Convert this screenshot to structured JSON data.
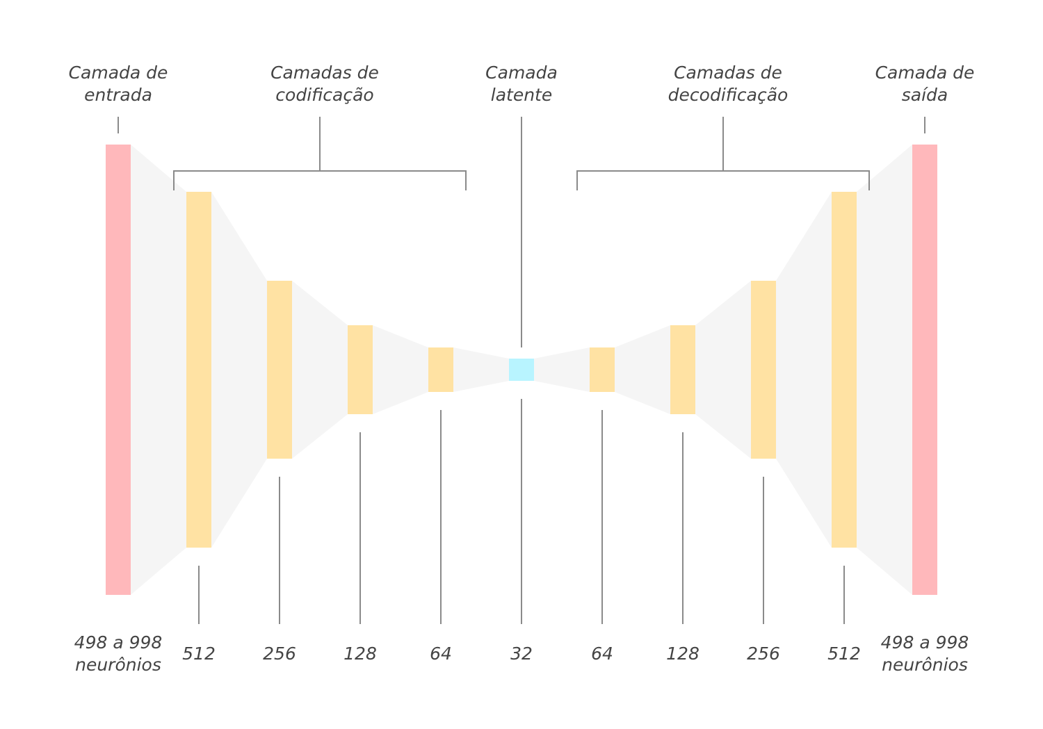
{
  "colors": {
    "io_layer": "#ffb8bb",
    "hidden_layer": "#ffe2a3",
    "latent_layer": "#b8f4ff",
    "trapezoid": "#f5f5f5",
    "line": "#8a8a8a",
    "text": "#444444"
  },
  "headers": {
    "input": [
      "Camada de",
      "entrada"
    ],
    "encoding": [
      "Camadas de",
      "codificação"
    ],
    "latent": [
      "Camada",
      "latente"
    ],
    "decoding": [
      "Camadas de",
      "decodificação"
    ],
    "output": [
      "Camada de",
      "saída"
    ]
  },
  "layers": [
    {
      "name": "input-layer",
      "kind": "io",
      "label": [
        "498 a 998",
        "neurônios"
      ]
    },
    {
      "name": "encoder-layer-512",
      "kind": "hidden",
      "label": [
        "512"
      ]
    },
    {
      "name": "encoder-layer-256",
      "kind": "hidden",
      "label": [
        "256"
      ]
    },
    {
      "name": "encoder-layer-128",
      "kind": "hidden",
      "label": [
        "128"
      ]
    },
    {
      "name": "encoder-layer-64",
      "kind": "hidden",
      "label": [
        "64"
      ]
    },
    {
      "name": "latent-layer-32",
      "kind": "latent",
      "label": [
        "32"
      ]
    },
    {
      "name": "decoder-layer-64",
      "kind": "hidden",
      "label": [
        "64"
      ]
    },
    {
      "name": "decoder-layer-128",
      "kind": "hidden",
      "label": [
        "128"
      ]
    },
    {
      "name": "decoder-layer-256",
      "kind": "hidden",
      "label": [
        "256"
      ]
    },
    {
      "name": "decoder-layer-512",
      "kind": "hidden",
      "label": [
        "512"
      ]
    },
    {
      "name": "output-layer",
      "kind": "io",
      "label": [
        "498 a 998",
        "neurônios"
      ]
    }
  ]
}
